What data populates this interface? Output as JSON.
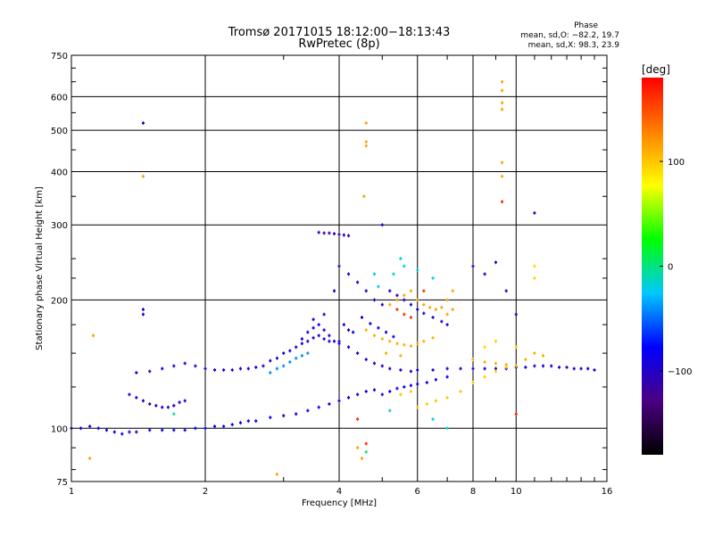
{
  "chart_data": {
    "type": "scatter",
    "title": "Tromsø 20171015 18:12:00−18:13:43",
    "subtitle": "RwPretec (8p)",
    "xlabel": "Frequency [MHz]",
    "ylabel": "Stationary phase Virtual Height [km]",
    "x_scale": "log",
    "y_scale": "log",
    "xlim": [
      1,
      16
    ],
    "ylim": [
      75,
      750
    ],
    "x_ticks": [
      1,
      2,
      4,
      6,
      8,
      10,
      16
    ],
    "x_tick_labels": [
      "1",
      "2",
      "4",
      "6",
      "8",
      "10",
      "16"
    ],
    "y_ticks": [
      75,
      100,
      200,
      300,
      400,
      500,
      600,
      750
    ],
    "y_tick_labels": [
      "75",
      "100",
      "200",
      "300",
      "400",
      "500",
      "600",
      "750"
    ],
    "grid": true,
    "stats": {
      "heading": "Phase",
      "line_o": "mean, sd,O: −82.2, 19.7",
      "line_x": "mean, sd,X:  98.3, 23.9"
    },
    "colorbar": {
      "unit": "[deg]",
      "range": [
        -180,
        180
      ],
      "ticks": [
        100,
        0,
        -100
      ],
      "tick_labels": [
        "100",
        "0",
        "−100"
      ],
      "colors": [
        "#000000",
        "#4b0082",
        "#0000ff",
        "#00c8ff",
        "#00ff00",
        "#ffff00",
        "#ff8000",
        "#ff0000"
      ]
    },
    "series": [
      {
        "points": [
          [
            1.0,
            100
          ],
          [
            1.05,
            100
          ],
          [
            1.1,
            101
          ],
          [
            1.15,
            100
          ],
          [
            1.2,
            99
          ],
          [
            1.25,
            98
          ],
          [
            1.3,
            97
          ],
          [
            1.35,
            98
          ],
          [
            1.4,
            98
          ],
          [
            1.5,
            99
          ],
          [
            1.6,
            99
          ],
          [
            1.7,
            99
          ],
          [
            1.8,
            99
          ],
          [
            1.9,
            100
          ],
          [
            2.0,
            100
          ],
          [
            2.1,
            101
          ],
          [
            2.2,
            101
          ],
          [
            2.3,
            102
          ],
          [
            2.4,
            103
          ],
          [
            2.5,
            104
          ],
          [
            2.6,
            104
          ],
          [
            2.8,
            106
          ],
          [
            3.0,
            107
          ],
          [
            3.2,
            108
          ],
          [
            3.4,
            110
          ],
          [
            3.6,
            112
          ],
          [
            3.8,
            114
          ],
          [
            4.0,
            116
          ],
          [
            4.2,
            118
          ],
          [
            4.4,
            120
          ],
          [
            4.6,
            122
          ],
          [
            4.8,
            123
          ],
          [
            5.0,
            120
          ],
          [
            5.2,
            122
          ],
          [
            5.4,
            124
          ],
          [
            5.6,
            125
          ],
          [
            5.8,
            126
          ],
          [
            6.0,
            127
          ],
          [
            6.3,
            128
          ],
          [
            6.6,
            130
          ],
          [
            7.0,
            132
          ]
        ],
        "phase": -85
      },
      {
        "points": [
          [
            1.4,
            135
          ],
          [
            1.5,
            136
          ],
          [
            1.6,
            138
          ],
          [
            1.7,
            140
          ],
          [
            1.8,
            142
          ],
          [
            1.9,
            140
          ],
          [
            2.0,
            138
          ],
          [
            2.1,
            137
          ],
          [
            2.2,
            137
          ],
          [
            2.3,
            137
          ],
          [
            2.4,
            138
          ],
          [
            2.5,
            138
          ],
          [
            2.6,
            139
          ],
          [
            2.7,
            140
          ],
          [
            2.8,
            144
          ],
          [
            2.9,
            146
          ],
          [
            3.0,
            150
          ],
          [
            3.1,
            152
          ],
          [
            3.2,
            155
          ],
          [
            3.3,
            158
          ],
          [
            3.4,
            160
          ],
          [
            3.5,
            163
          ],
          [
            3.6,
            165
          ],
          [
            3.7,
            162
          ],
          [
            3.8,
            160
          ],
          [
            4.0,
            160
          ],
          [
            4.2,
            155
          ],
          [
            4.4,
            150
          ],
          [
            4.6,
            145
          ],
          [
            4.8,
            142
          ],
          [
            5.0,
            140
          ],
          [
            5.2,
            138
          ],
          [
            5.5,
            137
          ],
          [
            5.8,
            136
          ],
          [
            6.0,
            137
          ],
          [
            6.5,
            137
          ],
          [
            7.0,
            138
          ],
          [
            7.5,
            138
          ],
          [
            8.0,
            138
          ],
          [
            8.5,
            138
          ],
          [
            9.0,
            138
          ],
          [
            9.5,
            138
          ],
          [
            10.0,
            139
          ],
          [
            10.5,
            139
          ],
          [
            11.0,
            140
          ],
          [
            11.5,
            140
          ],
          [
            12.0,
            140
          ],
          [
            12.5,
            139
          ],
          [
            13.0,
            139
          ],
          [
            13.5,
            138
          ],
          [
            14.0,
            138
          ],
          [
            14.5,
            138
          ],
          [
            15.0,
            137
          ]
        ],
        "phase": -95
      },
      {
        "points": [
          [
            1.35,
            120
          ],
          [
            1.4,
            118
          ],
          [
            1.45,
            116
          ],
          [
            1.5,
            114
          ],
          [
            1.55,
            113
          ],
          [
            1.6,
            112
          ],
          [
            1.65,
            112
          ],
          [
            1.7,
            113
          ],
          [
            1.75,
            115
          ],
          [
            1.8,
            116
          ]
        ],
        "phase": -100
      },
      {
        "points": [
          [
            3.3,
            162
          ],
          [
            3.4,
            168
          ],
          [
            3.5,
            172
          ],
          [
            3.6,
            175
          ],
          [
            3.7,
            170
          ],
          [
            3.8,
            165
          ],
          [
            3.9,
            160
          ],
          [
            4.0,
            158
          ],
          [
            3.5,
            180
          ],
          [
            3.7,
            185
          ],
          [
            4.1,
            175
          ],
          [
            4.2,
            170
          ],
          [
            4.3,
            168
          ],
          [
            4.5,
            182
          ],
          [
            4.7,
            176
          ],
          [
            4.9,
            172
          ],
          [
            5.1,
            168
          ],
          [
            5.3,
            164
          ]
        ],
        "phase": -90
      },
      {
        "points": [
          [
            3.6,
            288
          ],
          [
            3.7,
            287
          ],
          [
            3.8,
            287
          ],
          [
            3.9,
            286
          ],
          [
            4.0,
            285
          ],
          [
            4.1,
            284
          ],
          [
            4.2,
            283
          ]
        ],
        "phase": -110
      },
      {
        "points": [
          [
            4.2,
            230
          ],
          [
            4.4,
            220
          ],
          [
            4.6,
            210
          ],
          [
            4.8,
            200
          ],
          [
            5.0,
            195
          ],
          [
            5.2,
            210
          ],
          [
            5.4,
            205
          ],
          [
            5.6,
            200
          ],
          [
            5.8,
            195
          ],
          [
            6.0,
            190
          ],
          [
            6.2,
            186
          ],
          [
            6.5,
            182
          ],
          [
            6.8,
            178
          ],
          [
            7.0,
            175
          ]
        ],
        "phase": -95
      },
      {
        "points": [
          [
            2.8,
            135
          ],
          [
            2.9,
            138
          ],
          [
            3.0,
            140
          ],
          [
            3.1,
            143
          ],
          [
            3.2,
            146
          ],
          [
            3.3,
            148
          ],
          [
            3.4,
            150
          ]
        ],
        "phase": -40
      },
      {
        "points": [
          [
            4.8,
            165
          ],
          [
            5.0,
            162
          ],
          [
            5.2,
            160
          ],
          [
            5.4,
            158
          ],
          [
            5.6,
            157
          ],
          [
            5.8,
            156
          ],
          [
            6.0,
            158
          ],
          [
            6.2,
            160
          ],
          [
            6.5,
            163
          ],
          [
            4.6,
            170
          ],
          [
            5.1,
            150
          ],
          [
            5.5,
            148
          ]
        ],
        "phase": 110
      },
      {
        "points": [
          [
            5.2,
            195
          ],
          [
            5.4,
            200
          ],
          [
            5.6,
            205
          ],
          [
            5.8,
            210
          ],
          [
            6.0,
            200
          ],
          [
            6.2,
            195
          ],
          [
            6.4,
            192
          ],
          [
            6.6,
            190
          ],
          [
            6.8,
            192
          ],
          [
            7.0,
            200
          ],
          [
            7.2,
            210
          ],
          [
            7.0,
            185
          ],
          [
            7.2,
            190
          ]
        ],
        "phase": 115
      },
      {
        "points": [
          [
            5.4,
            190
          ],
          [
            5.6,
            185
          ],
          [
            5.8,
            182
          ],
          [
            6.2,
            210
          ]
        ],
        "phase": 160
      },
      {
        "points": [
          [
            6.0,
            112
          ],
          [
            6.3,
            114
          ],
          [
            6.6,
            116
          ],
          [
            7.0,
            118
          ],
          [
            7.5,
            122
          ],
          [
            8.0,
            128
          ],
          [
            8.5,
            132
          ],
          [
            9.0,
            136
          ],
          [
            9.5,
            139
          ],
          [
            10.0,
            140
          ],
          [
            5.5,
            120
          ],
          [
            5.8,
            122
          ]
        ],
        "phase": 100
      },
      {
        "points": [
          [
            8.0,
            145
          ],
          [
            8.5,
            143
          ],
          [
            9.0,
            142
          ],
          [
            9.5,
            141
          ],
          [
            10.0,
            140
          ],
          [
            10.5,
            145
          ],
          [
            11.0,
            150
          ],
          [
            11.5,
            148
          ]
        ],
        "phase": 110
      },
      {
        "points": [
          [
            9.3,
            650
          ],
          [
            9.3,
            620
          ],
          [
            9.3,
            580
          ],
          [
            9.3,
            560
          ],
          [
            9.3,
            420
          ],
          [
            9.3,
            390
          ],
          [
            4.6,
            520
          ],
          [
            4.6,
            470
          ],
          [
            4.6,
            460
          ],
          [
            4.55,
            350
          ],
          [
            1.45,
            390
          ],
          [
            1.12,
            165
          ],
          [
            1.1,
            85
          ],
          [
            2.9,
            78
          ],
          [
            4.4,
            90
          ],
          [
            4.5,
            85
          ]
        ],
        "phase": 115
      },
      {
        "points": [
          [
            9.3,
            340
          ],
          [
            10.0,
            108
          ],
          [
            4.4,
            105
          ],
          [
            4.6,
            92
          ]
        ],
        "phase": 165
      },
      {
        "points": [
          [
            1.45,
            520
          ],
          [
            1.45,
            190
          ],
          [
            1.45,
            185
          ],
          [
            11.0,
            320
          ],
          [
            5.0,
            300
          ],
          [
            8.0,
            240
          ],
          [
            8.5,
            230
          ],
          [
            9.0,
            245
          ],
          [
            9.5,
            210
          ],
          [
            10.0,
            185
          ],
          [
            4.0,
            240
          ],
          [
            3.9,
            210
          ]
        ],
        "phase": -100
      },
      {
        "points": [
          [
            5.5,
            250
          ],
          [
            5.6,
            240
          ],
          [
            5.3,
            230
          ],
          [
            6.0,
            235
          ],
          [
            6.5,
            225
          ],
          [
            4.8,
            230
          ],
          [
            4.9,
            215
          ],
          [
            5.2,
            110
          ],
          [
            6.5,
            105
          ],
          [
            7.0,
            100
          ]
        ],
        "phase": -20
      },
      {
        "points": [
          [
            1.7,
            108
          ],
          [
            4.6,
            88
          ]
        ],
        "phase": 0
      },
      {
        "points": [
          [
            11.0,
            240
          ],
          [
            11.0,
            225
          ],
          [
            9.0,
            160
          ],
          [
            8.5,
            155
          ],
          [
            10.0,
            155
          ]
        ],
        "phase": 95
      }
    ]
  }
}
